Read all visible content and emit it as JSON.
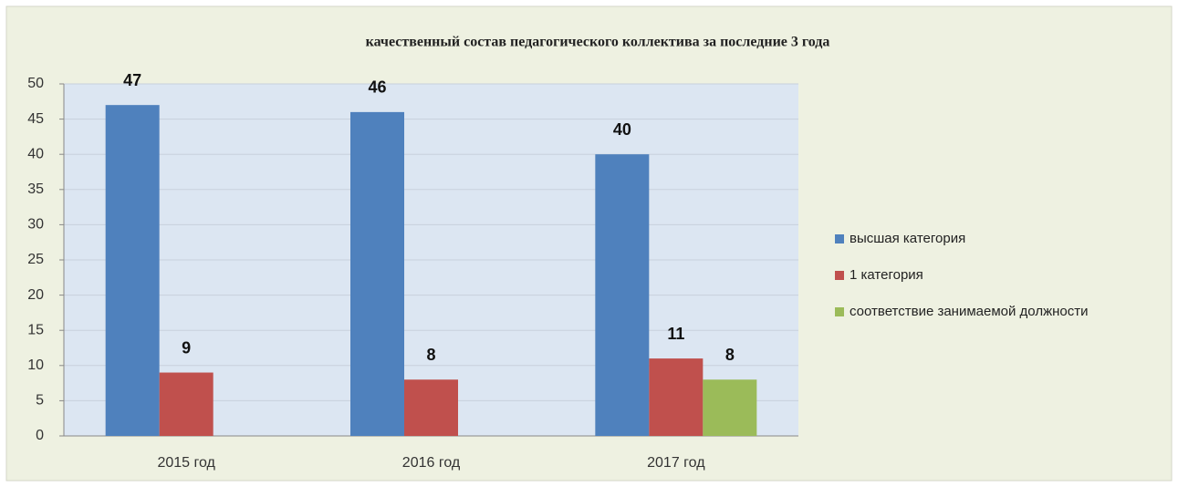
{
  "chart_data": {
    "type": "bar",
    "title": "качественный состав педагогического коллектива  за последние 3 года",
    "categories": [
      "2015 год",
      "2016 год",
      "2017 год"
    ],
    "series": [
      {
        "name": "высшая категория",
        "color": "#4f81bd",
        "values": [
          47,
          46,
          40
        ]
      },
      {
        "name": "1 категория",
        "color": "#c0504d",
        "values": [
          9,
          8,
          11
        ]
      },
      {
        "name": "соответствие занимаемой должности",
        "color": "#9bbb59",
        "values": [
          null,
          null,
          8
        ]
      }
    ],
    "ylim": [
      0,
      50
    ],
    "yticks": [
      0,
      5,
      10,
      15,
      20,
      25,
      30,
      35,
      40,
      45,
      50
    ],
    "grid": true,
    "legend": "right"
  }
}
